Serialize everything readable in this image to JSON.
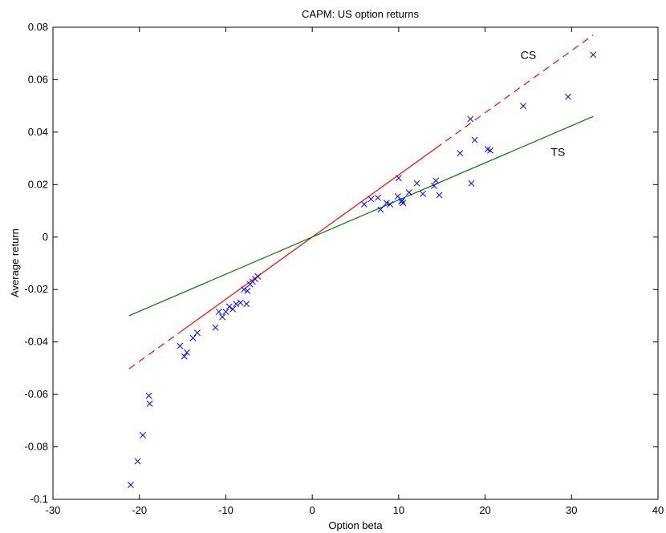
{
  "chart_data": {
    "type": "scatter",
    "title": "CAPM: US option returns",
    "xlabel": "Option beta",
    "ylabel": "Average return",
    "xlim": [
      -30,
      40
    ],
    "ylim": [
      -0.1,
      0.08
    ],
    "xticks": [
      -30,
      -20,
      -10,
      0,
      10,
      20,
      30,
      40
    ],
    "xtick_labels": [
      "-30",
      "-20",
      "-10",
      "0",
      "10",
      "20",
      "30",
      "40"
    ],
    "yticks": [
      -0.1,
      -0.08,
      -0.06,
      -0.04,
      -0.02,
      0,
      0.02,
      0.04,
      0.06,
      0.08
    ],
    "ytick_labels": [
      "-0.1",
      "-0.08",
      "-0.06",
      "-0.04",
      "-0.02",
      "0",
      "0.02",
      "0.04",
      "0.06",
      "0.08"
    ],
    "grid": false,
    "annotations": [
      {
        "text": "CS",
        "x": 24.1,
        "y": 0.0695
      },
      {
        "text": "TS",
        "x": 27.6,
        "y": 0.0325
      }
    ],
    "series": [
      {
        "type": "scatter",
        "marker": "x",
        "color": "#0000ff",
        "points": [
          [
            -21.0,
            -0.0945
          ],
          [
            -20.2,
            -0.0855
          ],
          [
            -19.6,
            -0.0755
          ],
          [
            -18.9,
            -0.0605
          ],
          [
            -18.8,
            -0.0635
          ],
          [
            -15.3,
            -0.0415
          ],
          [
            -14.8,
            -0.0455
          ],
          [
            -14.5,
            -0.044
          ],
          [
            -13.8,
            -0.0385
          ],
          [
            -13.3,
            -0.0365
          ],
          [
            -11.2,
            -0.0345
          ],
          [
            -10.8,
            -0.0285
          ],
          [
            -10.4,
            -0.0305
          ],
          [
            -10.0,
            -0.0285
          ],
          [
            -9.6,
            -0.0265
          ],
          [
            -9.2,
            -0.0275
          ],
          [
            -8.8,
            -0.0255
          ],
          [
            -8.3,
            -0.025
          ],
          [
            -7.9,
            -0.02
          ],
          [
            -7.6,
            -0.0255
          ],
          [
            -7.5,
            -0.0205
          ],
          [
            -7.2,
            -0.018
          ],
          [
            -6.9,
            -0.017
          ],
          [
            -6.6,
            -0.016
          ],
          [
            -6.3,
            -0.015
          ],
          [
            6.0,
            0.0125
          ],
          [
            6.8,
            0.0145
          ],
          [
            7.6,
            0.015
          ],
          [
            7.9,
            0.0105
          ],
          [
            8.6,
            0.013
          ],
          [
            9.0,
            0.0125
          ],
          [
            9.9,
            0.0155
          ],
          [
            10.0,
            0.0225
          ],
          [
            10.3,
            0.0135
          ],
          [
            10.4,
            0.014
          ],
          [
            10.5,
            0.013
          ],
          [
            11.2,
            0.017
          ],
          [
            12.1,
            0.0205
          ],
          [
            12.8,
            0.0165
          ],
          [
            14.1,
            0.0195
          ],
          [
            14.3,
            0.0215
          ],
          [
            14.7,
            0.016
          ],
          [
            17.1,
            0.032
          ],
          [
            18.3,
            0.045
          ],
          [
            18.4,
            0.0205
          ],
          [
            18.8,
            0.037
          ],
          [
            20.3,
            0.0335
          ],
          [
            20.6,
            0.033
          ],
          [
            24.4,
            0.05
          ],
          [
            29.6,
            0.0535
          ],
          [
            32.5,
            0.0695
          ]
        ]
      },
      {
        "type": "line",
        "name": "CS",
        "color": "#ff0000",
        "slope": 0.00237,
        "solid": [
          -15.3,
          14.3
        ],
        "dashed": [
          [
            -21.2,
            -15.3
          ],
          [
            14.3,
            32.5
          ]
        ]
      },
      {
        "type": "line",
        "name": "TS",
        "color": "#007700",
        "slope": 0.001415,
        "solid": [
          -21.2,
          32.5
        ]
      }
    ]
  }
}
